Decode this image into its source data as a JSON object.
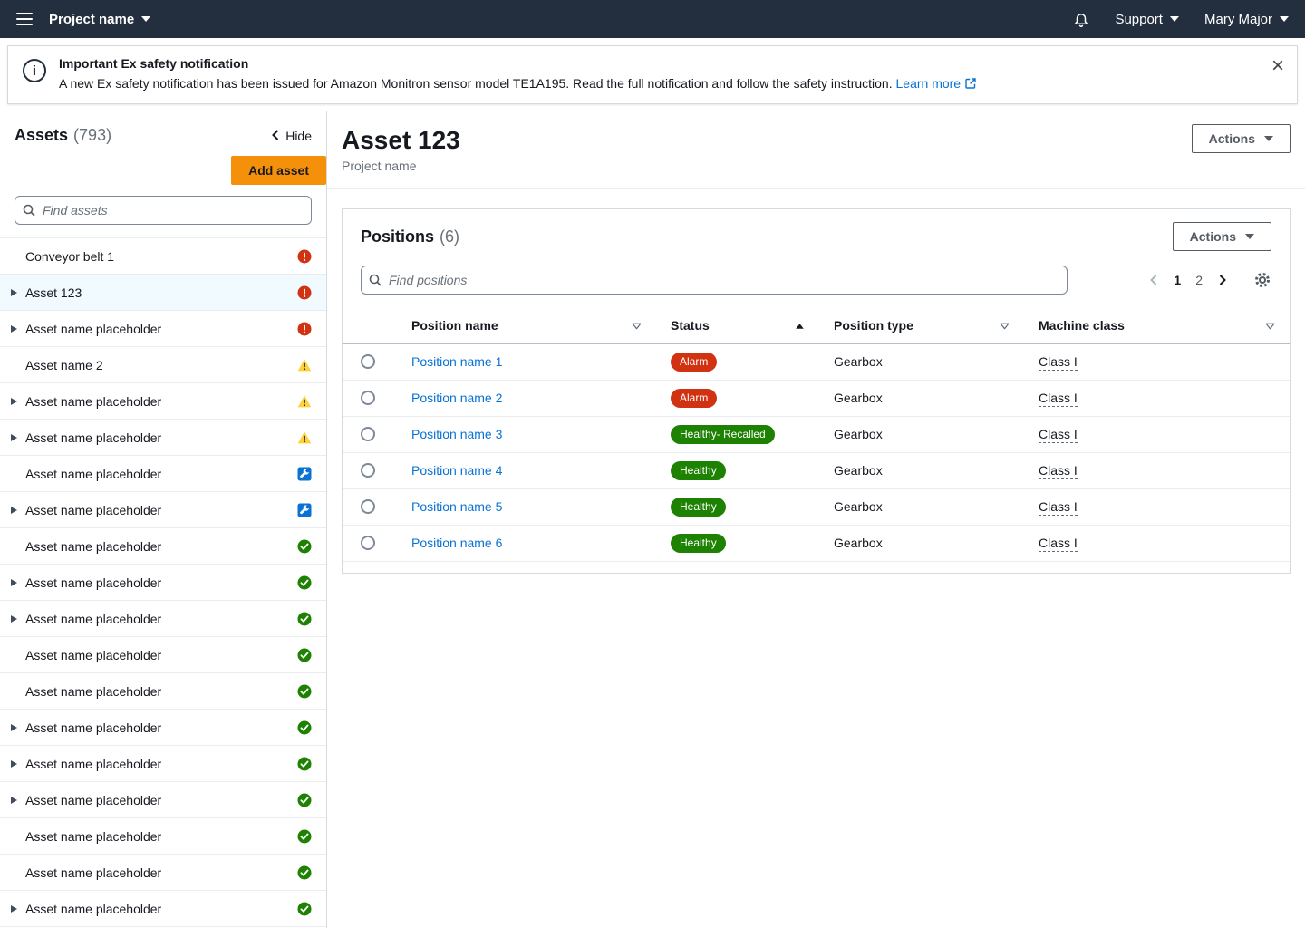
{
  "colors": {
    "nav_bg": "#232f3e",
    "accent_orange": "#f5900b",
    "link_blue": "#0972d3",
    "alarm_red": "#d13212",
    "healthy_green": "#1d8102",
    "warning_yellow": "#fdd13a",
    "maintenance_blue": "#0972d3"
  },
  "topnav": {
    "project_label": "Project name",
    "support_label": "Support",
    "user_label": "Mary Major"
  },
  "banner": {
    "title": "Important Ex safety notification",
    "body": "A new Ex safety notification has been issued for Amazon Monitron sensor model TE1A195. Read the full notification and follow the safety instruction.",
    "link_label": "Learn more"
  },
  "sidebar": {
    "title": "Assets",
    "count": "(793)",
    "hide_label": "Hide",
    "add_asset_label": "Add asset",
    "search_placeholder": "Find assets",
    "items": [
      {
        "label": "Conveyor belt 1",
        "status": "alarm",
        "expandable": false,
        "selected": false
      },
      {
        "label": "Asset 123",
        "status": "alarm",
        "expandable": true,
        "selected": true
      },
      {
        "label": "Asset name placeholder",
        "status": "alarm",
        "expandable": true,
        "selected": false
      },
      {
        "label": "Asset name 2",
        "status": "warning",
        "expandable": false,
        "selected": false
      },
      {
        "label": "Asset name placeholder",
        "status": "warning",
        "expandable": true,
        "selected": false
      },
      {
        "label": "Asset name placeholder",
        "status": "warning",
        "expandable": true,
        "selected": false
      },
      {
        "label": "Asset name placeholder",
        "status": "maintenance",
        "expandable": false,
        "selected": false
      },
      {
        "label": "Asset name placeholder",
        "status": "maintenance",
        "expandable": true,
        "selected": false
      },
      {
        "label": "Asset name placeholder",
        "status": "healthy",
        "expandable": false,
        "selected": false
      },
      {
        "label": "Asset name placeholder",
        "status": "healthy",
        "expandable": true,
        "selected": false
      },
      {
        "label": "Asset name placeholder",
        "status": "healthy",
        "expandable": true,
        "selected": false
      },
      {
        "label": "Asset name placeholder",
        "status": "healthy",
        "expandable": false,
        "selected": false
      },
      {
        "label": "Asset name placeholder",
        "status": "healthy",
        "expandable": false,
        "selected": false
      },
      {
        "label": "Asset name placeholder",
        "status": "healthy",
        "expandable": true,
        "selected": false
      },
      {
        "label": "Asset name placeholder",
        "status": "healthy",
        "expandable": true,
        "selected": false
      },
      {
        "label": "Asset name placeholder",
        "status": "healthy",
        "expandable": true,
        "selected": false
      },
      {
        "label": "Asset name placeholder",
        "status": "healthy",
        "expandable": false,
        "selected": false
      },
      {
        "label": "Asset name placeholder",
        "status": "healthy",
        "expandable": false,
        "selected": false
      },
      {
        "label": "Asset name placeholder",
        "status": "healthy",
        "expandable": true,
        "selected": false
      }
    ]
  },
  "main": {
    "title": "Asset 123",
    "subtitle": "Project name",
    "actions_label": "Actions",
    "panel": {
      "title": "Positions",
      "count": "(6)",
      "actions_label": "Actions",
      "search_placeholder": "Find positions",
      "pagination": {
        "current": "1",
        "pages": [
          "1",
          "2"
        ]
      },
      "columns": [
        {
          "label": "Position name",
          "sort": "filter-down"
        },
        {
          "label": "Status",
          "sort": "sorted-asc"
        },
        {
          "label": "Position type",
          "sort": "filter-down"
        },
        {
          "label": "Machine class",
          "sort": "filter-down"
        }
      ],
      "rows": [
        {
          "name": "Position name 1",
          "status_label": "Alarm",
          "status_kind": "alarm",
          "position_type": "Gearbox",
          "machine_class": "Class I"
        },
        {
          "name": "Position name 2",
          "status_label": "Alarm",
          "status_kind": "alarm",
          "position_type": "Gearbox",
          "machine_class": "Class I"
        },
        {
          "name": "Position name 3",
          "status_label": "Healthy- Recalled",
          "status_kind": "healthy",
          "position_type": "Gearbox",
          "machine_class": "Class I"
        },
        {
          "name": "Position name 4",
          "status_label": "Healthy",
          "status_kind": "healthy",
          "position_type": "Gearbox",
          "machine_class": "Class I"
        },
        {
          "name": "Position name 5",
          "status_label": "Healthy",
          "status_kind": "healthy",
          "position_type": "Gearbox",
          "machine_class": "Class I"
        },
        {
          "name": "Position name 6",
          "status_label": "Healthy",
          "status_kind": "healthy",
          "position_type": "Gearbox",
          "machine_class": "Class I"
        }
      ]
    }
  }
}
